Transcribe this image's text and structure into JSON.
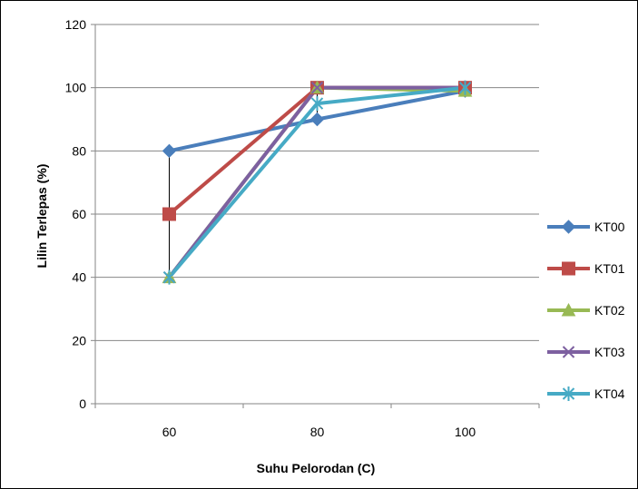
{
  "chart_data": {
    "type": "line",
    "categories": [
      "60",
      "80",
      "100"
    ],
    "xlabel": "Suhu Pelorodan (C)",
    "ylabel": "Lilin Terlepas (%)",
    "ylim": [
      0,
      120
    ],
    "yticks": [
      0,
      20,
      40,
      60,
      80,
      100,
      120
    ],
    "grid": "horizontal",
    "legend": "right",
    "series": [
      {
        "name": "KT00",
        "values": [
          80,
          90,
          99
        ],
        "color": "#4a7ebb",
        "marker": "diamond"
      },
      {
        "name": "KT01",
        "values": [
          60,
          100,
          100
        ],
        "color": "#be4b48",
        "marker": "square"
      },
      {
        "name": "KT02",
        "values": [
          40,
          100,
          99
        ],
        "color": "#98b954",
        "marker": "triangle"
      },
      {
        "name": "KT03",
        "values": [
          40,
          100,
          100
        ],
        "color": "#7d60a0",
        "marker": "x"
      },
      {
        "name": "KT04",
        "values": [
          40,
          95,
          100
        ],
        "color": "#46aac5",
        "marker": "star"
      }
    ]
  }
}
